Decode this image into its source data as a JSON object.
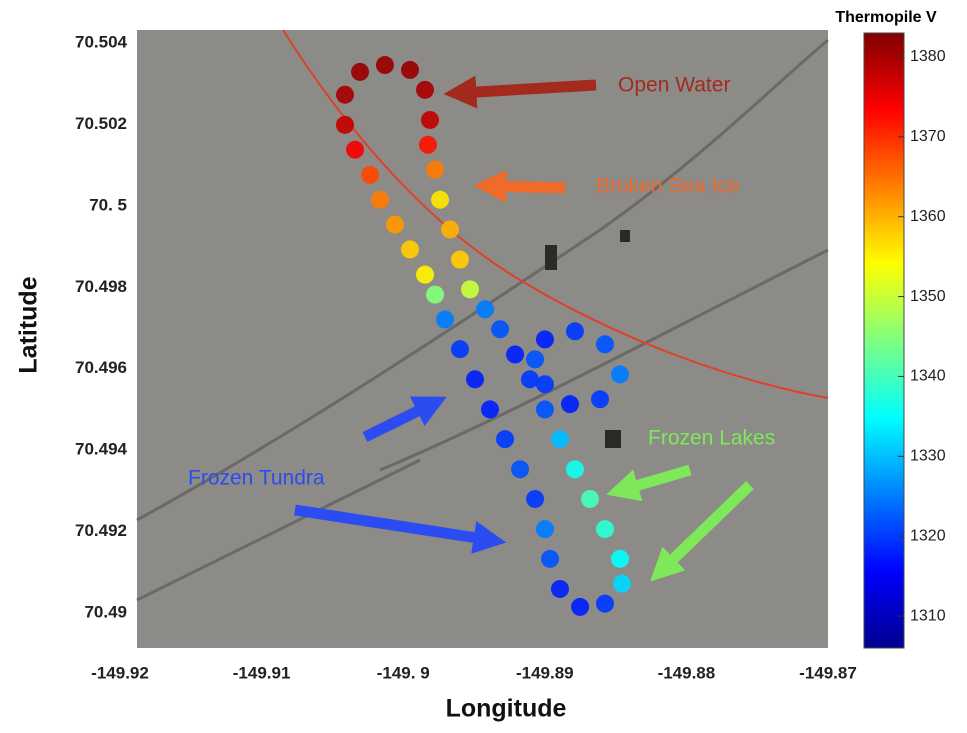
{
  "chart_data": {
    "type": "scatter",
    "xlabel": "Longitude",
    "ylabel": "Latitude",
    "colorbar_label": "Thermopile V",
    "colormap": "jet",
    "xlim": [
      -149.9188,
      -149.87
    ],
    "ylim": [
      70.48914,
      70.50432
    ],
    "clim": [
      1306,
      1383
    ],
    "xticks": [
      -149.92,
      -149.91,
      {
        "value": -149.9,
        "label": "-149. 9"
      },
      -149.89,
      -149.88,
      -149.87
    ],
    "yticks": [
      70.504,
      70.502,
      {
        "value": 70.5,
        "label": "70. 5"
      },
      70.498,
      70.496,
      70.494,
      70.492,
      70.49
    ],
    "cticks": [
      1380,
      1370,
      1360,
      1350,
      1340,
      1330,
      1320,
      1310
    ],
    "annotations": [
      {
        "text": "Open Water",
        "color": "#a52a1e"
      },
      {
        "text": "Broken Sea Ice",
        "color": "#f06a2a"
      },
      {
        "text": "Frozen Lakes",
        "color": "#7ee85a"
      },
      {
        "text": "Frozen Tundra",
        "color": "#2a4cf0"
      }
    ],
    "x": [
      -149.89811,
      -149.89846,
      -149.89952,
      -149.90129,
      -149.90305,
      -149.90411,
      -149.90411,
      -149.9034,
      -149.90234,
      -149.90164,
      -149.90058,
      -149.89952,
      -149.89846,
      -149.89775,
      -149.89705,
      -149.89599,
      -149.89493,
      -149.89387,
      -149.89281,
      -149.89175,
      -149.89069,
      -149.88999,
      -149.88963,
      -149.88893,
      -149.88751,
      -149.88575,
      -149.88455,
      -149.88469,
      -149.88575,
      -149.88681,
      -149.88787,
      -149.88893,
      -149.88999,
      -149.89105,
      -149.8921,
      -149.89316,
      -149.89422,
      -149.89528,
      -149.89599,
      -149.89669,
      -149.8974,
      -149.89775,
      -149.89825,
      -149.88999,
      -149.88787,
      -149.88575,
      -149.88469,
      -149.8861,
      -149.88822,
      -149.88999,
      -149.89069
    ],
    "y": [
      70.50211,
      70.50285,
      70.50334,
      70.50346,
      70.50329,
      70.50273,
      70.50199,
      70.50138,
      70.50076,
      70.50015,
      70.49954,
      70.49893,
      70.49831,
      70.49782,
      70.49721,
      70.49648,
      70.49574,
      70.495,
      70.49427,
      70.49353,
      70.4928,
      70.49206,
      70.49133,
      70.49059,
      70.49015,
      70.49023,
      70.49072,
      70.49133,
      70.49206,
      70.4928,
      70.49353,
      70.49427,
      70.495,
      70.49574,
      70.49635,
      70.49697,
      70.49746,
      70.49795,
      70.49868,
      70.49942,
      70.50015,
      70.50089,
      70.5015,
      70.49672,
      70.49692,
      70.4966,
      70.49586,
      70.49525,
      70.49513,
      70.49562,
      70.49623
    ],
    "values": [
      1378,
      1380,
      1381,
      1381,
      1381,
      1380,
      1378,
      1374,
      1368,
      1364,
      1362,
      1358,
      1355,
      1345,
      1325,
      1320,
      1318,
      1318,
      1320,
      1322,
      1320,
      1325,
      1322,
      1318,
      1318,
      1320,
      1332,
      1335,
      1338,
      1340,
      1336,
      1330,
      1322,
      1320,
      1318,
      1322,
      1325,
      1350,
      1358,
      1360,
      1356,
      1364,
      1372,
      1318,
      1320,
      1322,
      1325,
      1320,
      1318,
      1320,
      1322
    ]
  }
}
